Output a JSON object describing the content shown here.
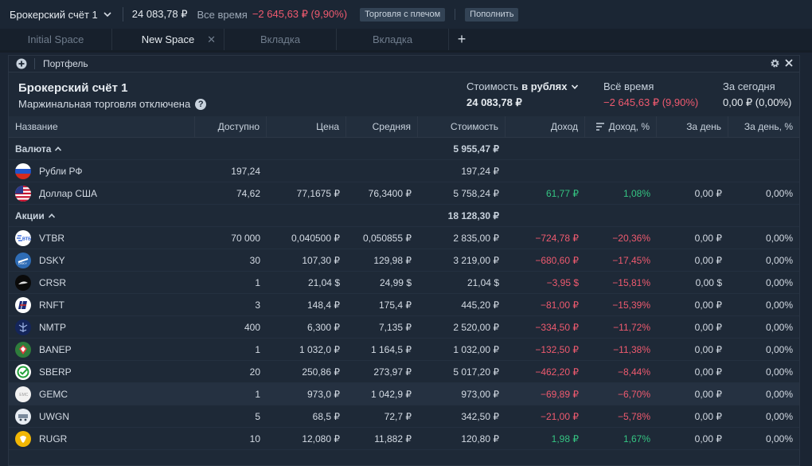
{
  "topbar": {
    "account": "Брокерский счёт 1",
    "total": "24 083,78 ₽",
    "alltime_label": "Все время",
    "alltime_value": "−2 645,63 ₽ (9,90%)",
    "margin_btn": "Торговля с плечом",
    "topup_btn": "Пополнить"
  },
  "tabs": [
    {
      "label": "Initial Space"
    },
    {
      "label": "New Space"
    },
    {
      "label": "Вкладка"
    },
    {
      "label": "Вкладка"
    }
  ],
  "panel": {
    "title": "Портфель",
    "account_title": "Брокерский счёт 1",
    "account_sub": "Маржинальная торговля отключена",
    "cost_label": "Стоимость",
    "cost_currency": "в рублях",
    "cost_value": "24 083,78 ₽",
    "alltime_label": "Всё время",
    "alltime_value": "−2 645,63 ₽ (9,90%)",
    "today_label": "За сегодня",
    "today_value": "0,00 ₽ (0,00%)"
  },
  "columns": [
    "Название",
    "Доступно",
    "Цена",
    "Средняя",
    "Стоимость",
    "Доход",
    "Доход, %",
    "За день",
    "За день, %"
  ],
  "groups": [
    {
      "name": "Валюта",
      "total": "5 955,47 ₽",
      "rows": [
        {
          "icon": "russia-flag-icon",
          "name": "Рубли РФ",
          "avail": "197,24",
          "price": "",
          "avg": "",
          "cost": "197,24 ₽",
          "inc": "",
          "incp": "",
          "day": "",
          "dayp": "",
          "sign": ""
        },
        {
          "icon": "usa-flag-icon",
          "name": "Доллар США",
          "avail": "74,62",
          "price": "77,1675 ₽",
          "avg": "76,3400 ₽",
          "cost": "5 758,24 ₽",
          "inc": "61,77 ₽",
          "incp": "1,08%",
          "day": "0,00 ₽",
          "dayp": "0,00%",
          "sign": "pos"
        }
      ]
    },
    {
      "name": "Акции",
      "total": "18 128,30 ₽",
      "rows": [
        {
          "icon": "vtb-logo-icon",
          "name": "VTBR",
          "avail": "70 000",
          "price": "0,040500 ₽",
          "avg": "0,050855 ₽",
          "cost": "2 835,00 ₽",
          "inc": "−724,78 ₽",
          "incp": "−20,36%",
          "day": "0,00 ₽",
          "dayp": "0,00%",
          "sign": "neg"
        },
        {
          "icon": "dsky-logo-icon",
          "name": "DSKY",
          "avail": "30",
          "price": "107,30 ₽",
          "avg": "129,98 ₽",
          "cost": "3 219,00 ₽",
          "inc": "−680,60 ₽",
          "incp": "−17,45%",
          "day": "0,00 ₽",
          "dayp": "0,00%",
          "sign": "neg"
        },
        {
          "icon": "crsr-logo-icon",
          "name": "CRSR",
          "avail": "1",
          "price": "21,04 $",
          "avg": "24,99 $",
          "cost": "21,04 $",
          "inc": "−3,95 $",
          "incp": "−15,81%",
          "day": "0,00 $",
          "dayp": "0,00%",
          "sign": "neg"
        },
        {
          "icon": "rnft-logo-icon",
          "name": "RNFT",
          "avail": "3",
          "price": "148,4 ₽",
          "avg": "175,4 ₽",
          "cost": "445,20 ₽",
          "inc": "−81,00 ₽",
          "incp": "−15,39%",
          "day": "0,00 ₽",
          "dayp": "0,00%",
          "sign": "neg"
        },
        {
          "icon": "nmtp-logo-icon",
          "name": "NMTP",
          "avail": "400",
          "price": "6,300 ₽",
          "avg": "7,135 ₽",
          "cost": "2 520,00 ₽",
          "inc": "−334,50 ₽",
          "incp": "−11,72%",
          "day": "0,00 ₽",
          "dayp": "0,00%",
          "sign": "neg"
        },
        {
          "icon": "banep-logo-icon",
          "name": "BANEP",
          "avail": "1",
          "price": "1 032,0 ₽",
          "avg": "1 164,5 ₽",
          "cost": "1 032,00 ₽",
          "inc": "−132,50 ₽",
          "incp": "−11,38%",
          "day": "0,00 ₽",
          "dayp": "0,00%",
          "sign": "neg"
        },
        {
          "icon": "sberbank-logo-icon",
          "name": "SBERP",
          "avail": "20",
          "price": "250,86 ₽",
          "avg": "273,97 ₽",
          "cost": "5 017,20 ₽",
          "inc": "−462,20 ₽",
          "incp": "−8,44%",
          "day": "0,00 ₽",
          "dayp": "0,00%",
          "sign": "neg"
        },
        {
          "icon": "gemc-logo-icon",
          "name": "GEMC",
          "avail": "1",
          "price": "973,0 ₽",
          "avg": "1 042,9 ₽",
          "cost": "973,00 ₽",
          "inc": "−69,89 ₽",
          "incp": "−6,70%",
          "day": "0,00 ₽",
          "dayp": "0,00%",
          "sign": "neg"
        },
        {
          "icon": "uwgn-logo-icon",
          "name": "UWGN",
          "avail": "5",
          "price": "68,5 ₽",
          "avg": "72,7 ₽",
          "cost": "342,50 ₽",
          "inc": "−21,00 ₽",
          "incp": "−5,78%",
          "day": "0,00 ₽",
          "dayp": "0,00%",
          "sign": "neg"
        },
        {
          "icon": "rugr-logo-icon",
          "name": "RUGR",
          "avail": "10",
          "price": "12,080 ₽",
          "avg": "11,882 ₽",
          "cost": "120,80 ₽",
          "inc": "1,98 ₽",
          "incp": "1,67%",
          "day": "0,00 ₽",
          "dayp": "0,00%",
          "sign": "pos"
        }
      ]
    }
  ],
  "colors": {
    "negative": "#ef5a6f",
    "positive": "#35c482",
    "background": "#1b2533"
  }
}
